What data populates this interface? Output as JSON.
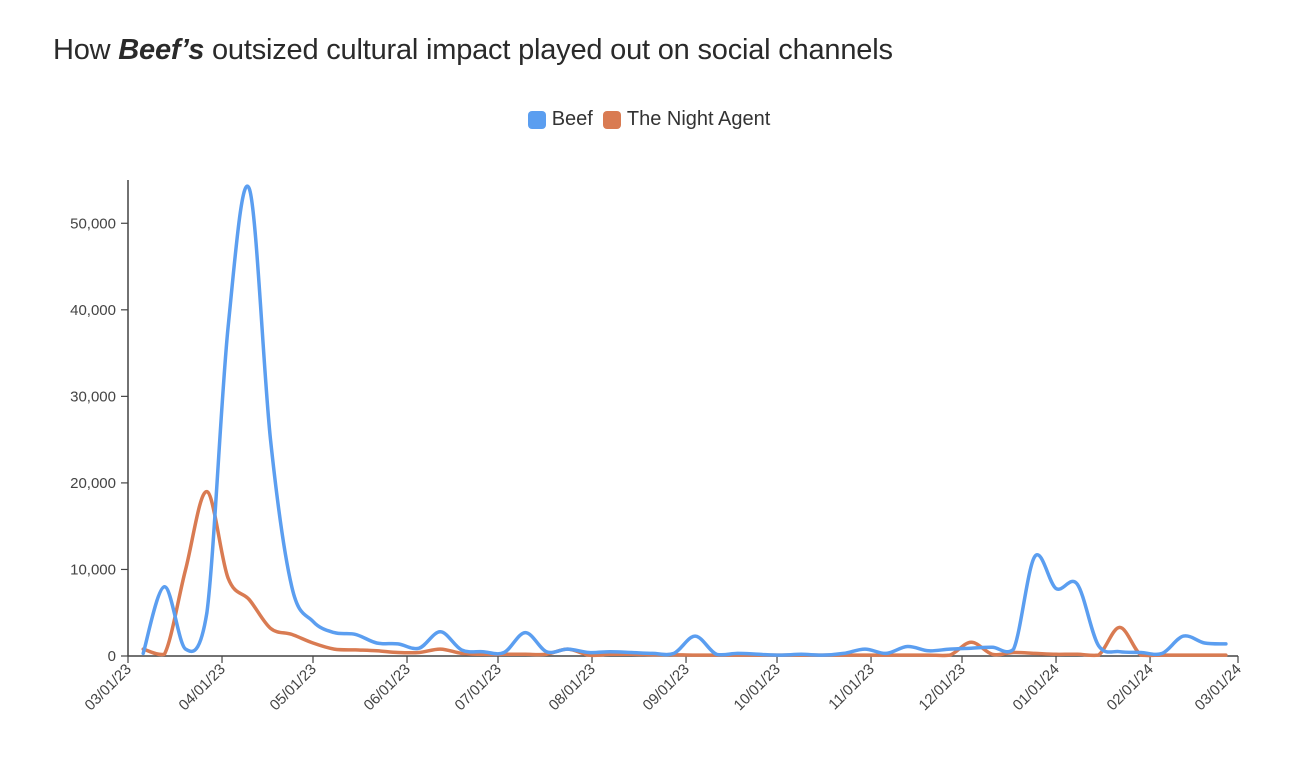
{
  "title": {
    "pre": "How ",
    "em": "Beef’s",
    "post": " outsized cultural impact played out on social channels"
  },
  "chart_data": {
    "type": "line",
    "title": "How Beef’s outsized cultural impact played out on social channels",
    "xlabel": "",
    "ylabel": "",
    "ylim": [
      0,
      55000
    ],
    "xlim": [
      "2023-03-01",
      "2024-03-01"
    ],
    "y_ticks": [
      0,
      10000,
      20000,
      30000,
      40000,
      50000
    ],
    "y_tick_labels": [
      "0",
      "10,000",
      "20,000",
      "30,000",
      "40,000",
      "50,000"
    ],
    "x_ticks": [
      "2023-03-01",
      "2023-04-01",
      "2023-05-01",
      "2023-06-01",
      "2023-07-01",
      "2023-08-01",
      "2023-09-01",
      "2023-10-01",
      "2023-11-01",
      "2023-12-01",
      "2024-01-01",
      "2024-02-01",
      "2024-03-01"
    ],
    "x_tick_labels": [
      "03/01/23",
      "04/01/23",
      "05/01/23",
      "06/01/23",
      "07/01/23",
      "08/01/23",
      "09/01/23",
      "10/01/23",
      "11/01/23",
      "12/01/23",
      "01/01/24",
      "02/01/24",
      "03/01/24"
    ],
    "grid": false,
    "legend_position": "top-center",
    "series": [
      {
        "name": "Beef",
        "color": "#5b9ef0",
        "x": [
          "2023-03-06",
          "2023-03-13",
          "2023-03-20",
          "2023-03-27",
          "2023-04-03",
          "2023-04-10",
          "2023-04-17",
          "2023-04-24",
          "2023-05-01",
          "2023-05-08",
          "2023-05-15",
          "2023-05-22",
          "2023-05-29",
          "2023-06-05",
          "2023-06-12",
          "2023-06-19",
          "2023-06-26",
          "2023-07-03",
          "2023-07-10",
          "2023-07-17",
          "2023-07-24",
          "2023-07-31",
          "2023-08-07",
          "2023-08-14",
          "2023-08-21",
          "2023-08-28",
          "2023-09-04",
          "2023-09-11",
          "2023-09-18",
          "2023-09-25",
          "2023-10-02",
          "2023-10-09",
          "2023-10-16",
          "2023-10-23",
          "2023-10-30",
          "2023-11-06",
          "2023-11-13",
          "2023-11-20",
          "2023-11-27",
          "2023-12-04",
          "2023-12-11",
          "2023-12-18",
          "2023-12-25",
          "2024-01-01",
          "2024-01-08",
          "2024-01-15",
          "2024-01-22",
          "2024-01-29",
          "2024-02-05",
          "2024-02-12",
          "2024-02-19",
          "2024-02-26"
        ],
        "values": [
          300,
          8000,
          800,
          5000,
          38000,
          54000,
          25000,
          8000,
          4000,
          2700,
          2500,
          1500,
          1400,
          900,
          2800,
          700,
          500,
          400,
          2700,
          500,
          800,
          400,
          500,
          400,
          300,
          300,
          2300,
          200,
          300,
          200,
          100,
          200,
          100,
          300,
          800,
          300,
          1100,
          600,
          800,
          900,
          1000,
          800,
          11500,
          7800,
          8300,
          1200,
          500,
          400,
          300,
          2300,
          1500,
          1400
        ]
      },
      {
        "name": "The Night Agent",
        "color": "#d97b52",
        "x": [
          "2023-03-06",
          "2023-03-13",
          "2023-03-20",
          "2023-03-27",
          "2023-04-03",
          "2023-04-10",
          "2023-04-17",
          "2023-04-24",
          "2023-05-01",
          "2023-05-08",
          "2023-05-15",
          "2023-05-22",
          "2023-05-29",
          "2023-06-05",
          "2023-06-12",
          "2023-06-19",
          "2023-06-26",
          "2023-07-03",
          "2023-07-10",
          "2023-07-17",
          "2023-07-24",
          "2023-07-31",
          "2023-08-07",
          "2023-08-14",
          "2023-08-21",
          "2023-08-28",
          "2023-09-04",
          "2023-09-11",
          "2023-09-18",
          "2023-09-25",
          "2023-10-02",
          "2023-10-09",
          "2023-10-16",
          "2023-10-23",
          "2023-10-30",
          "2023-11-06",
          "2023-11-13",
          "2023-11-20",
          "2023-11-27",
          "2023-12-04",
          "2023-12-11",
          "2023-12-18",
          "2023-12-25",
          "2024-01-01",
          "2024-01-08",
          "2024-01-15",
          "2024-01-22",
          "2024-01-29",
          "2024-02-05",
          "2024-02-12",
          "2024-02-19",
          "2024-02-26"
        ],
        "values": [
          800,
          200,
          10000,
          19000,
          9000,
          6500,
          3200,
          2500,
          1500,
          800,
          700,
          600,
          400,
          400,
          800,
          300,
          200,
          200,
          200,
          200,
          800,
          100,
          200,
          200,
          150,
          150,
          100,
          100,
          100,
          100,
          100,
          100,
          100,
          100,
          100,
          100,
          100,
          100,
          100,
          1600,
          200,
          400,
          300,
          200,
          200,
          100,
          3300,
          100,
          100,
          100,
          100,
          100
        ]
      }
    ]
  }
}
